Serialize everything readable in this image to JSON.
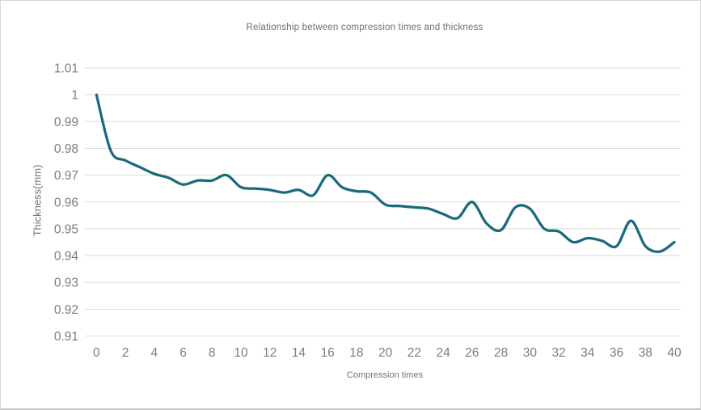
{
  "window": {
    "background": "#ffffff",
    "border_color": "#d6d6d6"
  },
  "chart_data": {
    "type": "line",
    "title": "Relationship between compression times and thickness",
    "xlabel": "Compression times",
    "ylabel": "Thickness(mm)",
    "x": [
      0,
      1,
      2,
      3,
      4,
      5,
      6,
      7,
      8,
      9,
      10,
      11,
      12,
      13,
      14,
      15,
      16,
      17,
      18,
      19,
      20,
      21,
      22,
      23,
      24,
      25,
      26,
      27,
      28,
      29,
      30,
      31,
      32,
      33,
      34,
      35,
      36,
      37,
      38,
      39,
      40
    ],
    "values": [
      1.0,
      0.979,
      0.9755,
      0.973,
      0.9705,
      0.969,
      0.9665,
      0.968,
      0.968,
      0.97,
      0.9655,
      0.965,
      0.9645,
      0.9635,
      0.9645,
      0.9625,
      0.97,
      0.9655,
      0.964,
      0.9635,
      0.959,
      0.9585,
      0.958,
      0.9575,
      0.9555,
      0.954,
      0.96,
      0.952,
      0.9495,
      0.958,
      0.9575,
      0.95,
      0.949,
      0.945,
      0.9465,
      0.9455,
      0.9435,
      0.953,
      0.9435,
      0.9415,
      0.945
    ],
    "xlim": [
      0,
      40
    ],
    "ylim": [
      0.91,
      1.01
    ],
    "x_ticks": [
      0,
      2,
      4,
      6,
      8,
      10,
      12,
      14,
      16,
      18,
      20,
      22,
      24,
      26,
      28,
      30,
      32,
      34,
      36,
      38,
      40
    ],
    "y_ticks": [
      1.01,
      1.0,
      0.99,
      0.98,
      0.97,
      0.96,
      0.95,
      0.94,
      0.93,
      0.92,
      0.91
    ],
    "y_tick_labels": [
      "1.01",
      "1",
      "0.99",
      "0.98",
      "0.97",
      "0.96",
      "0.95",
      "0.94",
      "0.93",
      "0.92",
      "0.91"
    ],
    "grid": "horizontal",
    "legend": "none",
    "line_color": "#1a6a7c",
    "grid_color": "#dbdbdb",
    "tick_label_color": "#7d7d7d",
    "title_color": "#6f6f6f",
    "line_width": 3.25
  }
}
